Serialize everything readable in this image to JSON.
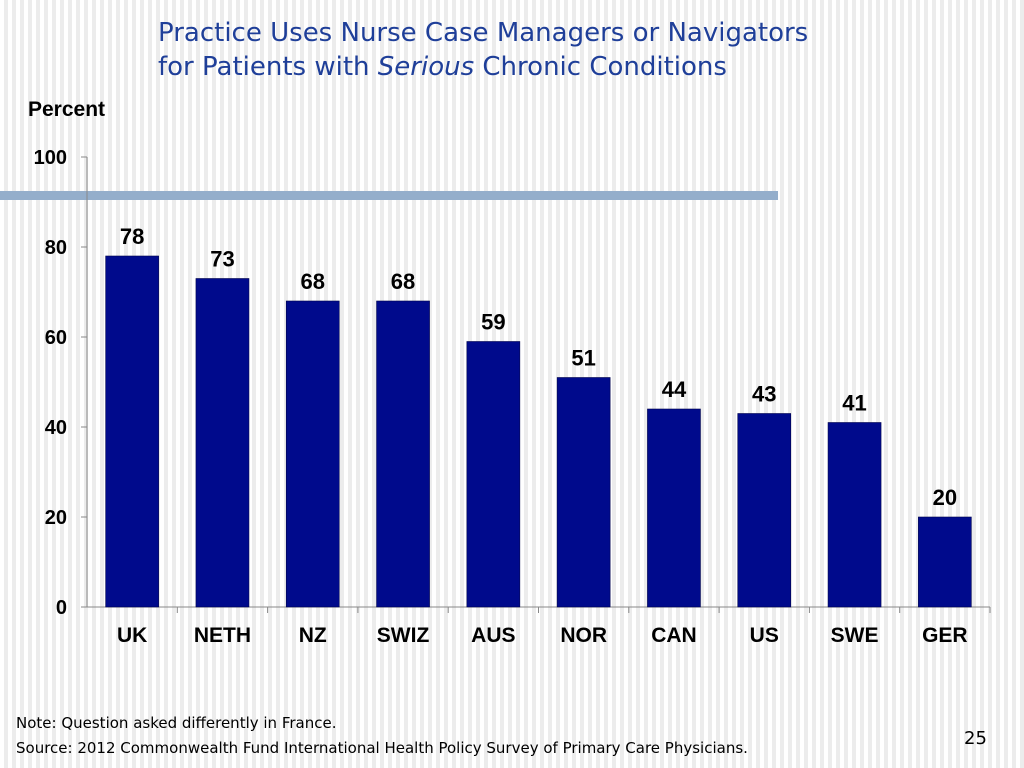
{
  "slide": {
    "title_line1": "Practice Uses Nurse Case Managers or Navigators",
    "title_line2_pre": "for Patients with ",
    "title_line2_em": "Serious",
    "title_line2_post": " Chronic Conditions",
    "note": "Note: Question asked differently in France.",
    "source": "Source: 2012 Commonwealth Fund International Health Policy Survey of Primary Care Physicians.",
    "page_number": "25"
  },
  "colors": {
    "title": "#1f3f99",
    "bar": "#000a8c",
    "accent": "#94aecb"
  },
  "chart_data": {
    "type": "bar",
    "title": "Practice Uses Nurse Case Managers or Navigators for Patients with Serious Chronic Conditions",
    "ylabel": "Percent",
    "xlabel": "",
    "categories": [
      "UK",
      "NETH",
      "NZ",
      "SWIZ",
      "AUS",
      "NOR",
      "CAN",
      "US",
      "SWE",
      "GER"
    ],
    "values": [
      78,
      73,
      68,
      68,
      59,
      51,
      44,
      43,
      41,
      20
    ],
    "ylim": [
      0,
      100
    ],
    "yticks": [
      0,
      20,
      40,
      60,
      80,
      100
    ],
    "data_labels": true,
    "grid": false,
    "legend": "none"
  }
}
